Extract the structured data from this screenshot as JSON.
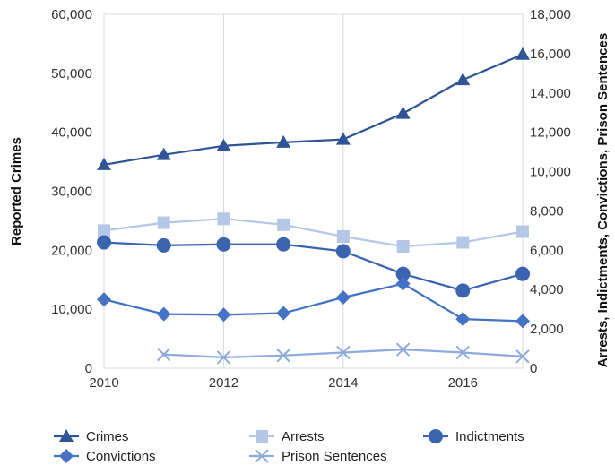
{
  "chart_data": {
    "type": "line",
    "title": "",
    "xlabel": "",
    "ylabel": "Reported Crimes",
    "y2label": "Arrests, Indictments, Convictions, Prison Sentences",
    "x": [
      2010,
      2011,
      2012,
      2013,
      2014,
      2015,
      2016,
      2017
    ],
    "x_ticks": [
      "2010",
      "2012",
      "2014",
      "2016"
    ],
    "xlim": [
      2010,
      2017
    ],
    "ylim": [
      0,
      60000
    ],
    "y2lim": [
      0,
      18000
    ],
    "y_ticks": [
      "0",
      "10,000",
      "20,000",
      "30,000",
      "40,000",
      "50,000",
      "60,000"
    ],
    "y2_ticks": [
      "0",
      "2,000",
      "4,000",
      "6,000",
      "8,000",
      "10,000",
      "12,000",
      "14,000",
      "16,000",
      "18,000"
    ],
    "grid": "vertical",
    "legend": "bottom",
    "series": [
      {
        "name": "Crimes",
        "axis": "left",
        "marker": "triangle",
        "color": "#2F5597",
        "values": [
          34500,
          36200,
          37700,
          38300,
          38800,
          43200,
          48900,
          53200
        ]
      },
      {
        "name": "Arrests",
        "axis": "right",
        "marker": "square",
        "color": "#B4C7E7",
        "values": [
          7000,
          7400,
          7600,
          7300,
          6700,
          6200,
          6400,
          6950
        ]
      },
      {
        "name": "Indictments",
        "axis": "right",
        "marker": "circle",
        "color": "#3A64AE",
        "values": [
          6400,
          6250,
          6300,
          6300,
          5950,
          4800,
          3950,
          4800
        ]
      },
      {
        "name": "Convictions",
        "axis": "right",
        "marker": "diamond",
        "color": "#4472C4",
        "values": [
          3500,
          2750,
          2720,
          2800,
          3600,
          4300,
          2500,
          2400
        ]
      },
      {
        "name": "Prison Sentences",
        "axis": "right",
        "marker": "x",
        "color": "#8FAADC",
        "values": [
          null,
          700,
          550,
          650,
          800,
          950,
          800,
          600
        ]
      }
    ]
  }
}
